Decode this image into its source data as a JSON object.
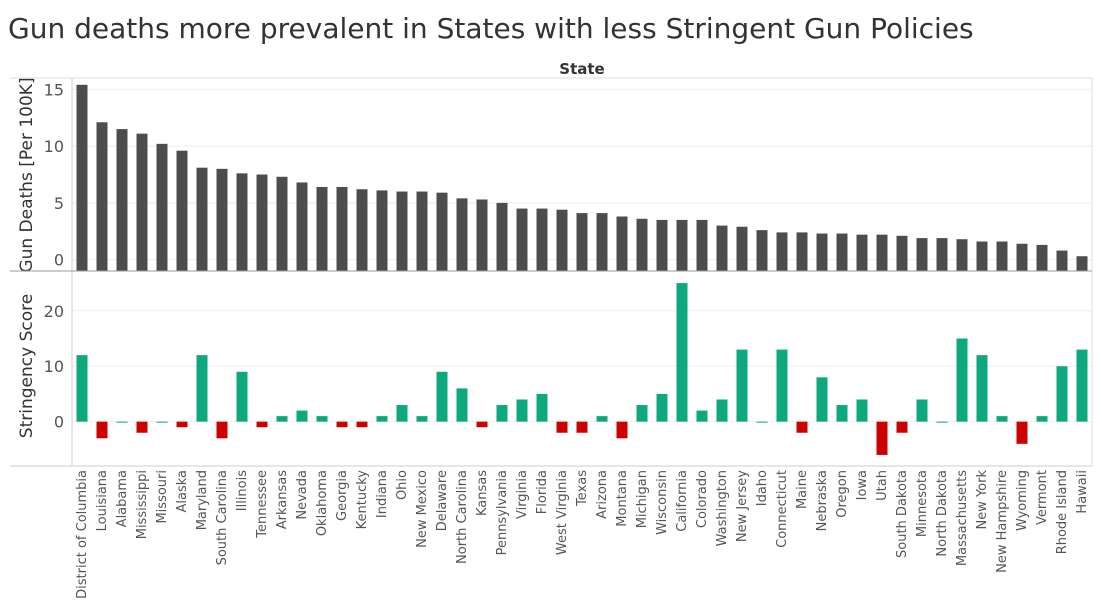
{
  "title": "Gun deaths more prevalent in States with less Stringent  Gun Policies",
  "chart_data": [
    {
      "type": "bar",
      "column_header": "State",
      "ylabel": "Gun Deaths [Per 100K]",
      "ylim": [
        -1,
        16
      ],
      "yticks": [
        0,
        5,
        10,
        15
      ],
      "bar_color": "#4d4d4d",
      "categories": [
        "District of Columbia",
        "Louisiana",
        "Alabama",
        "Mississippi",
        "Missouri",
        "Alaska",
        "Maryland",
        "South Carolina",
        "Illinois",
        "Tennessee",
        "Arkansas",
        "Nevada",
        "Oklahoma",
        "Georgia",
        "Kentucky",
        "Indiana",
        "Ohio",
        "New Mexico",
        "Delaware",
        "North Carolina",
        "Kansas",
        "Pennsylvania",
        "Virginia",
        "Florida",
        "West Virginia",
        "Texas",
        "Arizona",
        "Montana",
        "Michigan",
        "Wisconsin",
        "California",
        "Colorado",
        "Washington",
        "New Jersey",
        "Idaho",
        "Connecticut",
        "Maine",
        "Nebraska",
        "Oregon",
        "Iowa",
        "Utah",
        "South Dakota",
        "Minnesota",
        "North Dakota",
        "Massachusetts",
        "New York",
        "New Hampshire",
        "Wyoming",
        "Vermont",
        "Rhode Island",
        "Hawaii"
      ],
      "values": [
        15.4,
        12.1,
        11.5,
        11.1,
        10.2,
        9.6,
        8.1,
        8.0,
        7.6,
        7.5,
        7.3,
        6.8,
        6.4,
        6.4,
        6.2,
        6.1,
        6.0,
        6.0,
        5.9,
        5.4,
        5.3,
        5.0,
        4.5,
        4.5,
        4.4,
        4.1,
        4.1,
        3.8,
        3.6,
        3.5,
        3.5,
        3.5,
        3.0,
        2.9,
        2.6,
        2.4,
        2.4,
        2.3,
        2.3,
        2.2,
        2.2,
        2.1,
        1.9,
        1.9,
        1.8,
        1.6,
        1.6,
        1.4,
        1.3,
        0.8,
        0.3
      ]
    },
    {
      "type": "bar",
      "ylabel": "Stringency Score",
      "ylim": [
        -8,
        27
      ],
      "yticks": [
        0,
        10,
        20
      ],
      "positive_color": "#0ea87e",
      "negative_color": "#cc0000",
      "categories": [
        "District of Columbia",
        "Louisiana",
        "Alabama",
        "Mississippi",
        "Missouri",
        "Alaska",
        "Maryland",
        "South Carolina",
        "Illinois",
        "Tennessee",
        "Arkansas",
        "Nevada",
        "Oklahoma",
        "Georgia",
        "Kentucky",
        "Indiana",
        "Ohio",
        "New Mexico",
        "Delaware",
        "North Carolina",
        "Kansas",
        "Pennsylvania",
        "Virginia",
        "Florida",
        "West Virginia",
        "Texas",
        "Arizona",
        "Montana",
        "Michigan",
        "Wisconsin",
        "California",
        "Colorado",
        "Washington",
        "New Jersey",
        "Idaho",
        "Connecticut",
        "Maine",
        "Nebraska",
        "Oregon",
        "Iowa",
        "Utah",
        "South Dakota",
        "Minnesota",
        "North Dakota",
        "Massachusetts",
        "New York",
        "New Hampshire",
        "Wyoming",
        "Vermont",
        "Rhode Island",
        "Hawaii"
      ],
      "values": [
        12,
        -3,
        0,
        -2,
        0,
        -1,
        12,
        -3,
        9,
        -1,
        1,
        2,
        1,
        -1,
        -1,
        1,
        3,
        1,
        9,
        6,
        -1,
        3,
        4,
        5,
        -2,
        -2,
        1,
        -3,
        3,
        5,
        25,
        2,
        4,
        13,
        0,
        13,
        -2,
        8,
        3,
        4,
        -6,
        -2,
        4,
        0,
        15,
        12,
        1,
        -4,
        1,
        10,
        13
      ]
    }
  ]
}
